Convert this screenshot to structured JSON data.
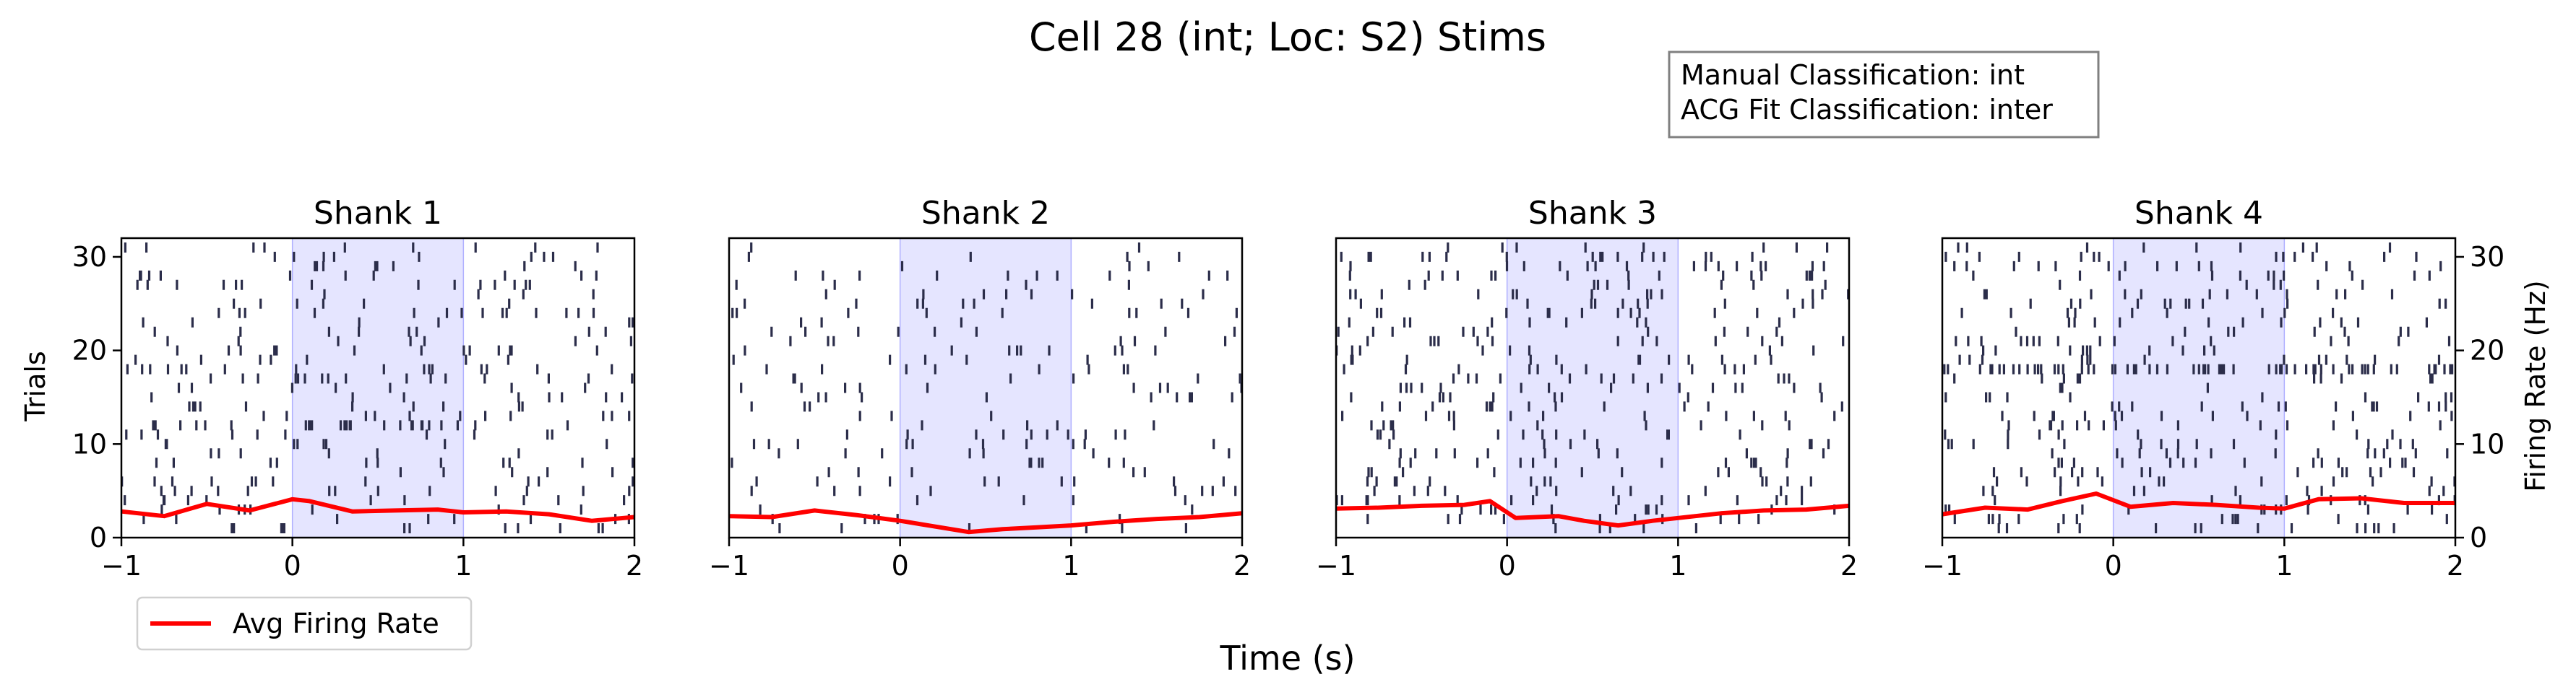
{
  "chart_data": {
    "type": "raster",
    "title": "Cell 28 (int; Loc: S2) Stims",
    "info_box": [
      "Manual Classification: int",
      "ACG Fit Classification: inter"
    ],
    "xlabel": "Time (s)",
    "ylabel_left": "Trials",
    "ylabel_right": "Firing Rate (Hz)",
    "legend": {
      "label": "Avg Firing Rate",
      "color": "#ff0000",
      "placement": "lower-left-outside"
    },
    "xlim": [
      -1,
      2
    ],
    "ylim": [
      0,
      32
    ],
    "x_ticks": [
      -1,
      0,
      1,
      2
    ],
    "y_ticks": [
      0,
      10,
      20,
      30
    ],
    "stim_window": [
      0,
      1
    ],
    "colors": {
      "spike": "#2b2d4a",
      "stim": "#e5e5ff",
      "rate": "#ff0000",
      "stim_edge": "#b0b0ff"
    },
    "n_trials": 31,
    "panels": [
      {
        "name": "Shank 1",
        "show_left_axis": true,
        "show_right_axis": false,
        "spike_density_hz": {
          "default": 3.2,
          "trial_overrides": [
            {
              "trials": [
                12
              ],
              "window": [
                0.05,
                0.8
              ],
              "rate": 18
            }
          ]
        },
        "avg_rate": {
          "x": [
            -1,
            -0.75,
            -0.5,
            -0.25,
            0,
            0.1,
            0.35,
            0.6,
            0.85,
            1.0,
            1.25,
            1.5,
            1.75,
            2
          ],
          "y": [
            2.8,
            2.3,
            3.6,
            2.9,
            4.1,
            3.9,
            2.8,
            2.9,
            3.0,
            2.7,
            2.8,
            2.5,
            1.8,
            2.2
          ]
        }
      },
      {
        "name": "Shank 2",
        "show_left_axis": false,
        "show_right_axis": false,
        "spike_density_hz": {
          "default": 2.2,
          "trial_overrides": []
        },
        "avg_rate": {
          "x": [
            -1,
            -0.75,
            -0.5,
            -0.25,
            0,
            0.2,
            0.4,
            0.6,
            0.8,
            1.0,
            1.25,
            1.5,
            1.75,
            2
          ],
          "y": [
            2.3,
            2.2,
            2.9,
            2.4,
            1.8,
            1.2,
            0.6,
            0.9,
            1.1,
            1.3,
            1.7,
            2.0,
            2.2,
            2.6
          ]
        }
      },
      {
        "name": "Shank 3",
        "show_left_axis": false,
        "show_right_axis": false,
        "spike_density_hz": {
          "default": 3.6,
          "trial_overrides": []
        },
        "avg_rate": {
          "x": [
            -1,
            -0.75,
            -0.5,
            -0.25,
            -0.1,
            0.05,
            0.3,
            0.45,
            0.65,
            0.85,
            1.0,
            1.25,
            1.5,
            1.75,
            2
          ],
          "y": [
            3.1,
            3.2,
            3.4,
            3.5,
            3.9,
            2.1,
            2.3,
            1.8,
            1.3,
            1.8,
            2.1,
            2.6,
            2.9,
            3.0,
            3.4
          ]
        }
      },
      {
        "name": "Shank 4",
        "show_left_axis": false,
        "show_right_axis": true,
        "spike_density_hz": {
          "default": 3.4,
          "trial_overrides": [
            {
              "trials": [
                18
              ],
              "window": [
                -1,
                2
              ],
              "rate": 20
            },
            {
              "trials": [
                14
              ],
              "window": [
                0.6,
                2
              ],
              "rate": 10
            },
            {
              "trials": [
                21
              ],
              "window": [
                -1,
                -0.2
              ],
              "rate": 10
            }
          ]
        },
        "avg_rate": {
          "x": [
            -1,
            -0.75,
            -0.5,
            -0.3,
            -0.1,
            0.1,
            0.35,
            0.6,
            0.85,
            1.0,
            1.2,
            1.45,
            1.7,
            2
          ],
          "y": [
            2.5,
            3.2,
            3.0,
            3.9,
            4.7,
            3.3,
            3.7,
            3.5,
            3.2,
            3.1,
            4.1,
            4.2,
            3.7,
            3.7
          ]
        }
      }
    ]
  }
}
